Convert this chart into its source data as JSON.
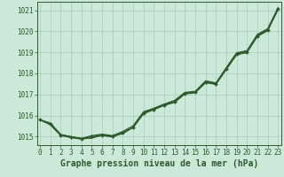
{
  "x": [
    0,
    1,
    2,
    3,
    4,
    5,
    6,
    7,
    8,
    9,
    10,
    11,
    12,
    13,
    14,
    15,
    16,
    17,
    18,
    19,
    20,
    21,
    22,
    23
  ],
  "line1": [
    1015.8,
    1015.65,
    1015.1,
    1015.0,
    1014.92,
    1014.93,
    1015.1,
    1015.02,
    1015.15,
    1015.45,
    1016.15,
    1016.32,
    1016.52,
    1016.68,
    1017.08,
    1017.12,
    1017.62,
    1017.52,
    1018.25,
    1018.95,
    1019.05,
    1019.82,
    1020.08,
    1021.08
  ],
  "line2": [
    1015.8,
    1015.62,
    1015.1,
    1015.0,
    1014.92,
    1015.05,
    1015.12,
    1015.05,
    1015.25,
    1015.52,
    1016.18,
    1016.35,
    1016.55,
    1016.72,
    1017.1,
    1017.15,
    1017.65,
    1017.55,
    1018.28,
    1018.98,
    1019.08,
    1019.85,
    1020.12,
    1021.12
  ],
  "line3_x": [
    0,
    1,
    2,
    3,
    4,
    5,
    6,
    7,
    8,
    9,
    10,
    11,
    12,
    13,
    14,
    15,
    16,
    17,
    18,
    19,
    20,
    21,
    22,
    23
  ],
  "line3": [
    1015.8,
    1015.6,
    1015.08,
    1014.98,
    1014.9,
    1015.0,
    1015.08,
    1015.0,
    1015.2,
    1015.45,
    1016.12,
    1016.3,
    1016.5,
    1016.65,
    1017.05,
    1017.1,
    1017.58,
    1017.5,
    1018.22,
    1018.92,
    1019.02,
    1019.78,
    1020.05,
    1021.05
  ],
  "line4": [
    1015.8,
    1015.55,
    1015.05,
    1014.95,
    1014.88,
    1014.95,
    1015.05,
    1014.98,
    1015.18,
    1015.42,
    1016.08,
    1016.28,
    1016.48,
    1016.62,
    1017.02,
    1017.08,
    1017.55,
    1017.48,
    1018.18,
    1018.88,
    1018.98,
    1019.75,
    1020.02,
    1021.02
  ],
  "bg_color": "#cce8d8",
  "grid_color": "#aaccbb",
  "line_color": "#2d5a2d",
  "xlabel": "Graphe pression niveau de la mer (hPa)",
  "ylim": [
    1014.6,
    1021.4
  ],
  "xlim": [
    -0.3,
    23.3
  ],
  "yticks": [
    1015,
    1016,
    1017,
    1018,
    1019,
    1020,
    1021
  ],
  "xticks": [
    0,
    1,
    2,
    3,
    4,
    5,
    6,
    7,
    8,
    9,
    10,
    11,
    12,
    13,
    14,
    15,
    16,
    17,
    18,
    19,
    20,
    21,
    22,
    23
  ],
  "tick_fontsize": 5.5,
  "label_fontsize": 7.0
}
